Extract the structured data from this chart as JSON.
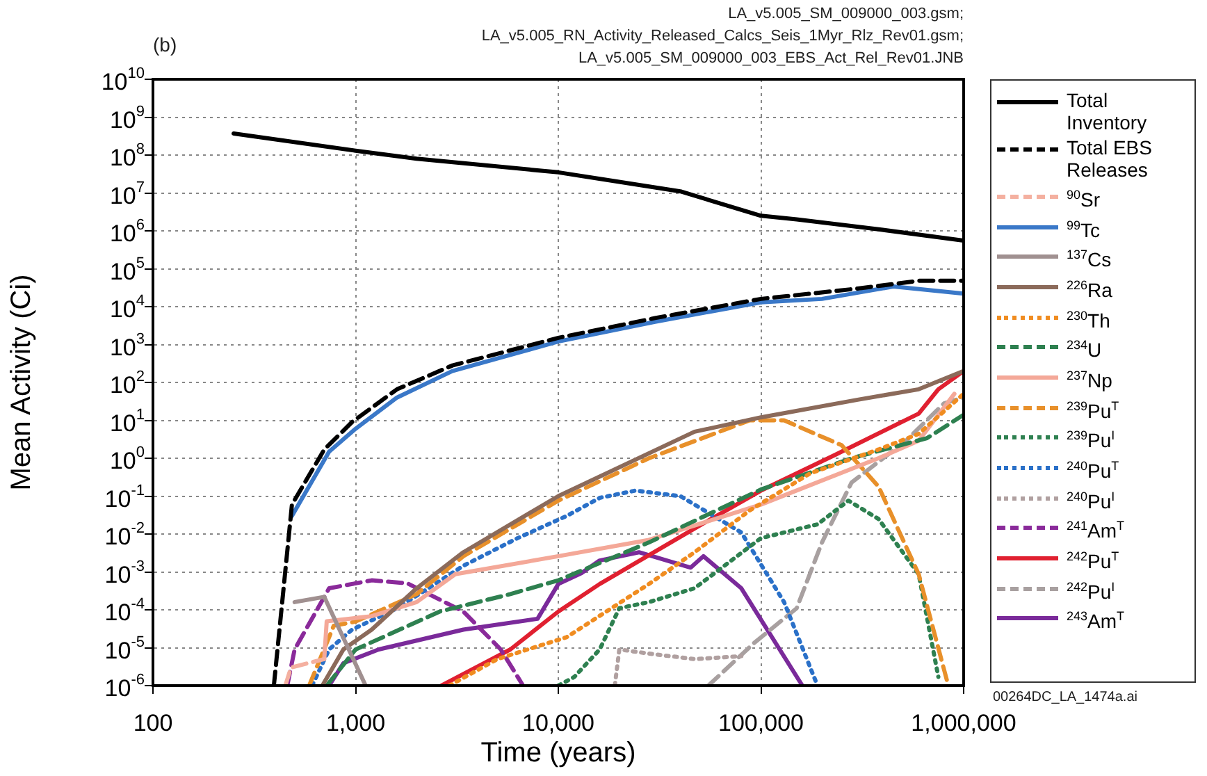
{
  "chart_data": {
    "type": "line",
    "xlabel": "Time (years)",
    "ylabel": "Mean Activity (Ci)",
    "annotations": [
      "(b)",
      "LA_v5.005_SM_009000_003.gsm;",
      "LA_v5.005_RN_Activity_Released_Calcs_Seis_1Myr_Rlz_Rev01.gsm;",
      "LA_v5.005_SM_009000_003_EBS_Act_Rel_Rev01.JNB",
      "00264DC_LA_1474a.ai"
    ],
    "log": "xy",
    "grid": true,
    "legend": "right",
    "marker": "none",
    "xlim": [
      100,
      1000000
    ],
    "ylim": [
      1e-06,
      10000000000
    ],
    "xticks": [
      100,
      {
        "value": 1000,
        "label": "1,000"
      },
      {
        "value": 10000,
        "label": "10,000"
      },
      {
        "value": 100000,
        "label": "100,000"
      },
      {
        "value": 1000000,
        "label": "1,000,000"
      }
    ],
    "yticks": [
      {
        "value": 1e-06,
        "label": "10$^{-6}$"
      },
      {
        "value": 1e-05,
        "label": "10$^{-5}$"
      },
      {
        "value": 0.0001,
        "label": "10$^{-4}$"
      },
      {
        "value": 0.001,
        "label": "10$^{-3}$"
      },
      {
        "value": 0.01,
        "label": "10$^{-2}$"
      },
      {
        "value": 0.1,
        "label": "10$^{-1}$"
      },
      {
        "value": 1,
        "label": "10$^{0}$"
      },
      {
        "value": 10,
        "label": "10$^{1}$"
      },
      {
        "value": 100,
        "label": "10$^{2}$"
      },
      {
        "value": 1000,
        "label": "10$^{3}$"
      },
      {
        "value": 10000,
        "label": "10$^{4}$"
      },
      {
        "value": 100000,
        "label": "10$^{5}$"
      },
      {
        "value": 1000000,
        "label": "10$^{6}$"
      },
      {
        "value": 10000000,
        "label": "10$^{7}$"
      },
      {
        "value": 100000000,
        "label": "10$^{8}$"
      },
      {
        "value": 1000000000,
        "label": "10$^{9}$"
      },
      {
        "value": 10000000000,
        "label": "10$^{10}$"
      }
    ],
    "series": [
      {
        "name": "Total Inventory",
        "color": "#000000",
        "line_style": "solid",
        "x": [
          250,
          1000,
          2000,
          10000,
          40000,
          100000,
          150000,
          380000,
          1000000
        ],
        "values": [
          370000000,
          130000000,
          80000000,
          35000000,
          11000000,
          2500000,
          2000000,
          1100000,
          550000
        ]
      },
      {
        "name": "Total EBS Releases",
        "color": "#000000",
        "line_style": "dashed",
        "x": [
          395,
          485,
          700,
          960,
          1600,
          3000,
          10000,
          30000,
          100000,
          300000,
          600000,
          1000000
        ],
        "values": [
          1e-06,
          0.06,
          1.7,
          9,
          66,
          280,
          1500,
          5000,
          16000,
          30000,
          48000,
          48000
        ]
      },
      {
        "name": "$^{90}$Sr",
        "color": "#f4b0a0",
        "line_style": "dashed",
        "x": [
          450,
          480,
          700
        ],
        "values": [
          1e-06,
          3e-06,
          5e-06
        ]
      },
      {
        "name": "$^{99}$Tc",
        "color": "#3a78c8",
        "line_style": "solid",
        "x": [
          485,
          740,
          1000,
          1600,
          3000,
          10000,
          30000,
          100000,
          200000,
          450000,
          1000000
        ],
        "values": [
          0.03,
          1.5,
          6,
          40,
          200,
          1200,
          4000,
          13000,
          16000,
          34000,
          22000
        ]
      },
      {
        "name": "$^{137}$Cs",
        "color": "#a09090",
        "line_style": "solid",
        "x": [
          500,
          700,
          1120
        ],
        "values": [
          0.00016,
          0.00022,
          1e-06
        ]
      },
      {
        "name": "$^{226}$Ra",
        "color": "#8b6a5a",
        "line_style": "solid",
        "x": [
          685,
          870,
          1200,
          2000,
          3400,
          10000,
          47000,
          100000,
          300000,
          600000,
          1000000
        ],
        "values": [
          1e-06,
          9e-06,
          3e-05,
          0.00037,
          0.0033,
          0.1,
          5,
          12,
          35,
          66,
          200
        ]
      },
      {
        "name": "$^{230}$Th",
        "color": "#f08c20",
        "line_style": "dotted",
        "x": [
          2900,
          5000,
          11000,
          28000,
          47000,
          88000,
          175000,
          380000,
          600000,
          1000000
        ],
        "values": [
          1e-06,
          5e-06,
          1.9e-05,
          0.00048,
          0.0033,
          0.042,
          0.4,
          1.7,
          4.4,
          50
        ]
      },
      {
        "name": "$^{234}$U",
        "color": "#2e8050",
        "line_style": "dashed",
        "x": [
          720,
          1000,
          2600,
          5800,
          10000,
          28000,
          100000,
          280000,
          660000,
          1000000
        ],
        "values": [
          1e-06,
          9e-06,
          9e-05,
          0.00026,
          0.0006,
          0.006,
          0.15,
          1,
          3.4,
          14
        ]
      },
      {
        "name": "$^{237}$Np",
        "color": "#f4a898",
        "line_style": "solid",
        "x": [
          700,
          720,
          1200,
          2000,
          3100,
          10000,
          28000,
          100000,
          380000,
          600000,
          900000
        ],
        "values": [
          5e-06,
          5e-05,
          6.8e-05,
          0.00016,
          0.00087,
          0.0026,
          0.007,
          0.06,
          1,
          2.9,
          50
        ]
      },
      {
        "name": "$^{239}$Pu$^{T}$",
        "color": "#e8902a",
        "line_style": "dashed",
        "x": [
          590,
          780,
          1000,
          2000,
          3400,
          10000,
          28000,
          88000,
          130000,
          250000,
          380000,
          600000,
          840000
        ],
        "values": [
          1e-06,
          3.8e-05,
          4.9e-05,
          0.00026,
          0.0026,
          0.076,
          1,
          10,
          10,
          2.2,
          0.18,
          0.00087,
          1e-06
        ]
      },
      {
        "name": "$^{239}$Pu$^{I}$",
        "color": "#2e8050",
        "line_style": "dotted",
        "x": [
          10000,
          12000,
          16000,
          20000,
          28000,
          47000,
          100000,
          190000,
          270000,
          380000,
          600000,
          750000
        ],
        "values": [
          1e-06,
          1.7e-06,
          9e-06,
          0.00011,
          0.00016,
          0.00037,
          0.0078,
          0.018,
          0.076,
          0.025,
          0.00087,
          1.7e-06
        ]
      },
      {
        "name": "$^{240}$Pu$^{T}$",
        "color": "#2a70c8",
        "line_style": "dotted",
        "x": [
          610,
          740,
          960,
          1600,
          3400,
          6300,
          11000,
          16000,
          24000,
          40000,
          80000,
          130000,
          190000
        ],
        "values": [
          1e-06,
          9e-06,
          3e-05,
          0.00011,
          0.00145,
          0.0078,
          0.03,
          0.09,
          0.14,
          0.1,
          0.011,
          0.00016,
          1e-06
        ]
      },
      {
        "name": "$^{240}$Pu$^{I}$",
        "color": "#b0a0a0",
        "line_style": "dotted",
        "x": [
          19000,
          20000,
          28000,
          47000,
          80000
        ],
        "values": [
          1e-06,
          9e-06,
          7e-06,
          5e-06,
          6e-06
        ]
      },
      {
        "name": "$^{241}$Am$^{T}$",
        "color": "#8a2a9a",
        "line_style": "dashed",
        "x": [
          460,
          500,
          740,
          1200,
          1800,
          3400,
          5200,
          6700
        ],
        "values": [
          1e-06,
          9e-06,
          0.00037,
          0.0006,
          0.0005,
          9e-05,
          9e-06,
          1e-06
        ]
      },
      {
        "name": "$^{242}$Pu$^{T}$",
        "color": "#e02030",
        "line_style": "solid",
        "x": [
          2650,
          5800,
          10000,
          16000,
          47000,
          100000,
          230000,
          600000,
          750000,
          1000000
        ],
        "values": [
          1e-06,
          9e-06,
          9e-05,
          0.00048,
          0.014,
          0.14,
          1.2,
          15,
          66,
          200
        ]
      },
      {
        "name": "$^{242}$Pu$^{I}$",
        "color": "#a8a0a0",
        "line_style": "dashed",
        "x": [
          55000,
          92000,
          150000,
          200000,
          280000,
          520000,
          800000,
          1000000
        ],
        "values": [
          1e-06,
          1.3e-05,
          0.00011,
          0.006,
          0.23,
          2.9,
          28,
          40
        ]
      },
      {
        "name": "$^{243}$Am$^{T}$",
        "color": "#7a2a9a",
        "line_style": "solid",
        "x": [
          740,
          870,
          1300,
          3400,
          7900,
          10000,
          13000,
          16000,
          25000,
          45000,
          52000,
          80000,
          160000
        ],
        "values": [
          1e-06,
          3.9e-06,
          9e-06,
          3e-05,
          5.8e-05,
          0.00048,
          0.00093,
          0.002,
          0.0033,
          0.0013,
          0.0026,
          0.00037,
          1e-06
        ]
      }
    ]
  }
}
